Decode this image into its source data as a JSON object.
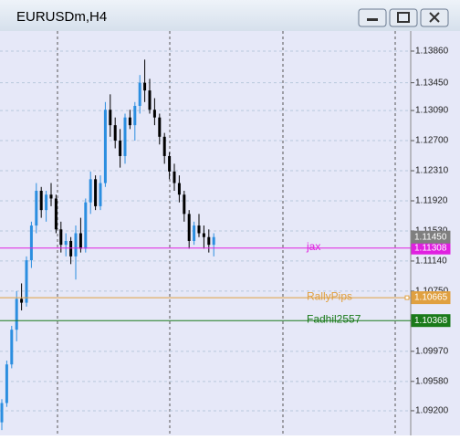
{
  "window": {
    "title": "EURUSDm,H4"
  },
  "chart_data": {
    "type": "candlestick",
    "open": [
      1.0905,
      1.093,
      1.098,
      1.1025,
      1.1065,
      1.106,
      1.1115,
      1.116,
      1.1205,
      1.118,
      1.12,
      1.1195,
      1.1155,
      1.1135,
      1.114,
      1.112,
      1.115,
      1.113,
      1.119,
      1.122,
      1.1185,
      1.1215,
      1.131,
      1.129,
      1.127,
      1.125,
      1.13,
      1.129,
      1.1315,
      1.1345,
      1.1335,
      1.131,
      1.13,
      1.1275,
      1.125,
      1.123,
      1.1215,
      1.12,
      1.1175,
      1.114,
      1.116,
      1.115,
      1.1145,
      1.1135
    ],
    "high": [
      1.0935,
      1.0985,
      1.103,
      1.1075,
      1.1085,
      1.112,
      1.1165,
      1.1215,
      1.121,
      1.1205,
      1.1215,
      1.12,
      1.1165,
      1.115,
      1.1145,
      1.116,
      1.117,
      1.1195,
      1.123,
      1.1225,
      1.1225,
      1.132,
      1.133,
      1.13,
      1.1285,
      1.1305,
      1.131,
      1.132,
      1.1355,
      1.1375,
      1.135,
      1.1325,
      1.1305,
      1.128,
      1.1255,
      1.124,
      1.1225,
      1.1205,
      1.118,
      1.1165,
      1.1175,
      1.116,
      1.1155,
      1.115
    ],
    "low": [
      1.0895,
      1.0925,
      1.0975,
      1.101,
      1.105,
      1.1055,
      1.1105,
      1.115,
      1.117,
      1.1165,
      1.1185,
      1.115,
      1.1125,
      1.112,
      1.111,
      1.109,
      1.1125,
      1.1125,
      1.1175,
      1.118,
      1.118,
      1.121,
      1.1275,
      1.126,
      1.1235,
      1.124,
      1.1285,
      1.127,
      1.1305,
      1.132,
      1.1305,
      1.129,
      1.1265,
      1.124,
      1.122,
      1.1205,
      1.119,
      1.1165,
      1.113,
      1.1135,
      1.1145,
      1.113,
      1.1125,
      1.112
    ],
    "close": [
      1.093,
      1.098,
      1.1025,
      1.1065,
      1.106,
      1.1115,
      1.116,
      1.1205,
      1.118,
      1.12,
      1.1195,
      1.1155,
      1.1135,
      1.114,
      1.112,
      1.115,
      1.113,
      1.119,
      1.122,
      1.1185,
      1.1215,
      1.131,
      1.129,
      1.127,
      1.125,
      1.13,
      1.129,
      1.1315,
      1.1345,
      1.1335,
      1.131,
      1.13,
      1.1275,
      1.125,
      1.123,
      1.1215,
      1.12,
      1.1175,
      1.114,
      1.116,
      1.115,
      1.1145,
      1.1135,
      1.1145
    ],
    "up_color": "#2b8ee0",
    "down_color": "#000000",
    "ylim": [
      1.0888,
      1.1412
    ],
    "yticks": [
      {
        "value": 1.1386,
        "label": "1.13860"
      },
      {
        "value": 1.1345,
        "label": "1.13450"
      },
      {
        "value": 1.1309,
        "label": "1.13090"
      },
      {
        "value": 1.127,
        "label": "1.12700"
      },
      {
        "value": 1.1231,
        "label": "1.12310"
      },
      {
        "value": 1.1192,
        "label": "1.11920"
      },
      {
        "value": 1.1153,
        "label": "1.11530"
      },
      {
        "value": 1.1114,
        "label": "1.11140"
      },
      {
        "value": 1.1075,
        "label": "1.10750"
      },
      {
        "value": 1.0997,
        "label": "1.09970"
      },
      {
        "value": 1.0958,
        "label": "1.09580"
      },
      {
        "value": 1.092,
        "label": "1.09200"
      }
    ],
    "grid": true,
    "current_price": {
      "value": 1.1145,
      "label": "1.11450",
      "color": "#7f7f7f"
    },
    "lines": [
      {
        "name": "jax",
        "value": 1.11308,
        "label": "1.11308",
        "color": "#e020e0"
      },
      {
        "name": "RallyPips",
        "value": 1.10665,
        "label": "1.10665",
        "color": "#e0a040"
      },
      {
        "name": "Fadhil2557",
        "value": 1.10368,
        "label": "1.10368",
        "color": "#1a7a1a"
      }
    ]
  }
}
